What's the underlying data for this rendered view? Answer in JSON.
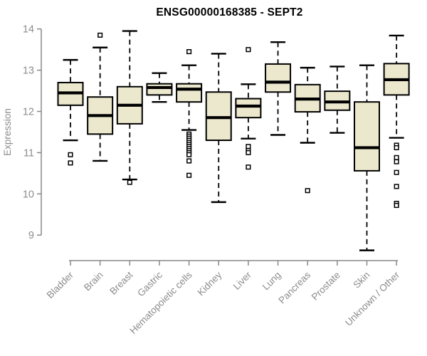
{
  "page": {
    "background": "#ffffff"
  },
  "chart_data": {
    "type": "boxplot",
    "title": "ENSG00000168385 - SEPT2",
    "ylabel": "Expression",
    "xlabel": "",
    "ylim": [
      9,
      14
    ],
    "yticks": [
      9,
      10,
      11,
      12,
      13,
      14
    ],
    "grid": false,
    "legend_position": "none",
    "colors": {
      "box_fill": "#ece8cd",
      "box_stroke": "#000000",
      "median": "#000000",
      "whisker": "#000000",
      "axis": "#888888",
      "tick_label": "#8c8c8c",
      "title": "#000000"
    },
    "categories": [
      "Bladder",
      "Brain",
      "Breast",
      "Gastric",
      "Hematopoietic cells",
      "Kidney",
      "Liver",
      "Lung",
      "Pancreas",
      "Prostate",
      "Skin",
      "Unknown / Other"
    ],
    "series": [
      {
        "label": "Bladder",
        "whisker_low": 11.3,
        "q1": 12.15,
        "median": 12.45,
        "q3": 12.7,
        "whisker_high": 13.25,
        "outliers": [
          10.95,
          10.75
        ]
      },
      {
        "label": "Brain",
        "whisker_low": 10.8,
        "q1": 11.45,
        "median": 11.9,
        "q3": 12.35,
        "whisker_high": 13.55,
        "outliers": [
          13.85
        ]
      },
      {
        "label": "Breast",
        "whisker_low": 10.35,
        "q1": 11.7,
        "median": 12.15,
        "q3": 12.6,
        "whisker_high": 13.95,
        "outliers": [
          10.28
        ]
      },
      {
        "label": "Gastric",
        "whisker_low": 12.23,
        "q1": 12.4,
        "median": 12.58,
        "q3": 12.67,
        "whisker_high": 12.93,
        "outliers": []
      },
      {
        "label": "Hematopoietic cells",
        "whisker_low": 11.55,
        "q1": 12.23,
        "median": 12.54,
        "q3": 12.67,
        "whisker_high": 13.12,
        "outliers": [
          13.45,
          11.45,
          11.4,
          11.35,
          11.3,
          11.25,
          11.2,
          11.15,
          11.1,
          11.05,
          11.0,
          10.95,
          10.8,
          10.45
        ]
      },
      {
        "label": "Kidney",
        "whisker_low": 9.8,
        "q1": 11.3,
        "median": 11.85,
        "q3": 12.47,
        "whisker_high": 13.4,
        "outliers": []
      },
      {
        "label": "Liver",
        "whisker_low": 11.34,
        "q1": 11.85,
        "median": 12.13,
        "q3": 12.31,
        "whisker_high": 12.66,
        "outliers": [
          13.5,
          11.15,
          11.05,
          11.0,
          10.65
        ]
      },
      {
        "label": "Lung",
        "whisker_low": 11.43,
        "q1": 12.47,
        "median": 12.71,
        "q3": 13.15,
        "whisker_high": 13.68,
        "outliers": []
      },
      {
        "label": "Pancreas",
        "whisker_low": 11.24,
        "q1": 11.99,
        "median": 12.3,
        "q3": 12.65,
        "whisker_high": 13.06,
        "outliers": [
          10.08
        ]
      },
      {
        "label": "Prostate",
        "whisker_low": 11.48,
        "q1": 12.03,
        "median": 12.23,
        "q3": 12.49,
        "whisker_high": 13.09,
        "outliers": []
      },
      {
        "label": "Skin",
        "whisker_low": 8.63,
        "q1": 10.56,
        "median": 11.12,
        "q3": 12.23,
        "whisker_high": 13.12,
        "outliers": []
      },
      {
        "label": "Unknown / Other",
        "whisker_low": 11.36,
        "q1": 12.4,
        "median": 12.77,
        "q3": 13.16,
        "whisker_high": 13.84,
        "outliers": [
          11.18,
          11.12,
          10.88,
          10.78,
          10.52,
          10.18,
          9.77,
          9.72
        ]
      }
    ]
  }
}
